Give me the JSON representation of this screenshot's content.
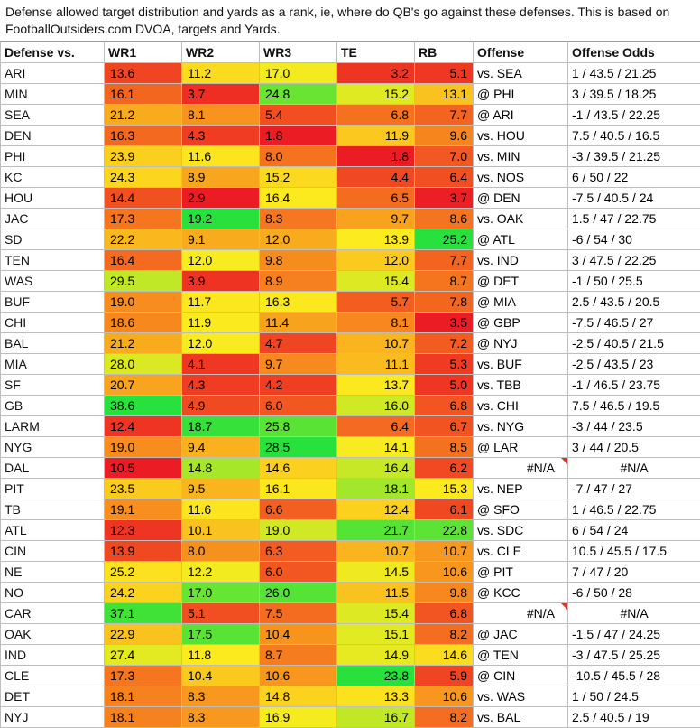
{
  "note": "Defense allowed target distribution and yards as a rank, ie, where do QB's go against these defenses. This is based on FootballOutsiders.com DVOA, targets and Yards.",
  "headers": [
    "Defense vs.",
    "WR1",
    "WR2",
    "WR3",
    "TE",
    "RB",
    "Offense",
    "Offense Odds"
  ],
  "rows": [
    {
      "team": "ARI",
      "wr1": "13.6",
      "wr2": "11.2",
      "wr3": "17.0",
      "te": "3.2",
      "rb": "5.1",
      "offense": "vs. SEA",
      "odds": "1 / 43.5 / 21.25"
    },
    {
      "team": "MIN",
      "wr1": "16.1",
      "wr2": "3.7",
      "wr3": "24.8",
      "te": "15.2",
      "rb": "13.1",
      "offense": "@ PHI",
      "odds": "3 / 39.5 / 18.25"
    },
    {
      "team": "SEA",
      "wr1": "21.2",
      "wr2": "8.1",
      "wr3": "5.4",
      "te": "6.8",
      "rb": "7.7",
      "offense": "@ ARI",
      "odds": "-1 / 43.5 / 22.25"
    },
    {
      "team": "DEN",
      "wr1": "16.3",
      "wr2": "4.3",
      "wr3": "1.8",
      "te": "11.9",
      "rb": "9.6",
      "offense": "vs. HOU",
      "odds": "7.5 / 40.5 / 16.5"
    },
    {
      "team": "PHI",
      "wr1": "23.9",
      "wr2": "11.6",
      "wr3": "8.0",
      "te": "1.8",
      "rb": "7.0",
      "offense": "vs. MIN",
      "odds": "-3 / 39.5 / 21.25"
    },
    {
      "team": "KC",
      "wr1": "24.3",
      "wr2": "8.9",
      "wr3": "15.2",
      "te": "4.4",
      "rb": "6.4",
      "offense": "vs. NOS",
      "odds": "6 / 50 / 22"
    },
    {
      "team": "HOU",
      "wr1": "14.4",
      "wr2": "2.9",
      "wr3": "16.4",
      "te": "6.5",
      "rb": "3.7",
      "offense": "@ DEN",
      "odds": "-7.5 / 40.5 / 24"
    },
    {
      "team": "JAC",
      "wr1": "17.3",
      "wr2": "19.2",
      "wr3": "8.3",
      "te": "9.7",
      "rb": "8.6",
      "offense": "vs. OAK",
      "odds": "1.5 / 47 / 22.75"
    },
    {
      "team": "SD",
      "wr1": "22.2",
      "wr2": "9.1",
      "wr3": "12.0",
      "te": "13.9",
      "rb": "25.2",
      "offense": "@ ATL",
      "odds": "-6 / 54 / 30"
    },
    {
      "team": "TEN",
      "wr1": "16.4",
      "wr2": "12.0",
      "wr3": "9.8",
      "te": "12.0",
      "rb": "7.7",
      "offense": "vs. IND",
      "odds": "3 / 47.5 / 22.25"
    },
    {
      "team": "WAS",
      "wr1": "29.5",
      "wr2": "3.9",
      "wr3": "8.9",
      "te": "15.4",
      "rb": "8.7",
      "offense": "@ DET",
      "odds": "-1 / 50 / 25.5"
    },
    {
      "team": "BUF",
      "wr1": "19.0",
      "wr2": "11.7",
      "wr3": "16.3",
      "te": "5.7",
      "rb": "7.8",
      "offense": "@ MIA",
      "odds": "2.5 / 43.5 / 20.5"
    },
    {
      "team": "CHI",
      "wr1": "18.6",
      "wr2": "11.9",
      "wr3": "11.4",
      "te": "8.1",
      "rb": "3.5",
      "offense": "@ GBP",
      "odds": "-7.5 / 46.5 / 27"
    },
    {
      "team": "BAL",
      "wr1": "21.2",
      "wr2": "12.0",
      "wr3": "4.7",
      "te": "10.7",
      "rb": "7.2",
      "offense": "@ NYJ",
      "odds": "-2.5 / 40.5 / 21.5"
    },
    {
      "team": "MIA",
      "wr1": "28.0",
      "wr2": "4.1",
      "wr3": "9.7",
      "te": "11.1",
      "rb": "5.3",
      "offense": "vs. BUF",
      "odds": "-2.5 / 43.5 / 23"
    },
    {
      "team": "SF",
      "wr1": "20.7",
      "wr2": "4.3",
      "wr3": "4.2",
      "te": "13.7",
      "rb": "5.0",
      "offense": "vs. TBB",
      "odds": "-1 / 46.5 / 23.75"
    },
    {
      "team": "GB",
      "wr1": "38.6",
      "wr2": "4.9",
      "wr3": "6.0",
      "te": "16.0",
      "rb": "6.8",
      "offense": "vs. CHI",
      "odds": "7.5 / 46.5 / 19.5"
    },
    {
      "team": "LARM",
      "wr1": "12.4",
      "wr2": "18.7",
      "wr3": "25.8",
      "te": "6.4",
      "rb": "6.7",
      "offense": "vs. NYG",
      "odds": "-3 / 44 / 23.5"
    },
    {
      "team": "NYG",
      "wr1": "19.0",
      "wr2": "9.4",
      "wr3": "28.5",
      "te": "14.1",
      "rb": "8.5",
      "offense": "@ LAR",
      "odds": "3 / 44 / 20.5"
    },
    {
      "team": "DAL",
      "wr1": "10.5",
      "wr2": "14.8",
      "wr3": "14.6",
      "te": "16.4",
      "rb": "6.2",
      "offense": "#N/A",
      "odds": "#N/A",
      "na": true
    },
    {
      "team": "PIT",
      "wr1": "23.5",
      "wr2": "9.5",
      "wr3": "16.1",
      "te": "18.1",
      "rb": "15.3",
      "offense": "vs. NEP",
      "odds": "-7 / 47 / 27"
    },
    {
      "team": "TB",
      "wr1": "19.1",
      "wr2": "11.6",
      "wr3": "6.6",
      "te": "12.4",
      "rb": "6.1",
      "offense": "@ SFO",
      "odds": "1 / 46.5 / 22.75"
    },
    {
      "team": "ATL",
      "wr1": "12.3",
      "wr2": "10.1",
      "wr3": "19.0",
      "te": "21.7",
      "rb": "22.8",
      "offense": "vs. SDC",
      "odds": "6 / 54 / 24"
    },
    {
      "team": "CIN",
      "wr1": "13.9",
      "wr2": "8.0",
      "wr3": "6.3",
      "te": "10.7",
      "rb": "10.7",
      "offense": "vs. CLE",
      "odds": "10.5 / 45.5 / 17.5"
    },
    {
      "team": "NE",
      "wr1": "25.2",
      "wr2": "12.2",
      "wr3": "6.0",
      "te": "14.5",
      "rb": "10.6",
      "offense": "@ PIT",
      "odds": "7 / 47 / 20"
    },
    {
      "team": "NO",
      "wr1": "24.2",
      "wr2": "17.0",
      "wr3": "26.0",
      "te": "11.5",
      "rb": "9.8",
      "offense": "@ KCC",
      "odds": "-6 / 50 / 28"
    },
    {
      "team": "CAR",
      "wr1": "37.1",
      "wr2": "5.1",
      "wr3": "7.5",
      "te": "15.4",
      "rb": "6.8",
      "offense": "#N/A",
      "odds": "#N/A",
      "na": true
    },
    {
      "team": "OAK",
      "wr1": "22.9",
      "wr2": "17.5",
      "wr3": "10.4",
      "te": "15.1",
      "rb": "8.2",
      "offense": "@ JAC",
      "odds": "-1.5 / 47 / 24.25"
    },
    {
      "team": "IND",
      "wr1": "27.4",
      "wr2": "11.8",
      "wr3": "8.7",
      "te": "14.9",
      "rb": "14.6",
      "offense": "@ TEN",
      "odds": "-3 / 47.5 / 25.25"
    },
    {
      "team": "CLE",
      "wr1": "17.3",
      "wr2": "10.4",
      "wr3": "10.6",
      "te": "23.8",
      "rb": "5.9",
      "offense": "@ CIN",
      "odds": "-10.5 / 45.5 / 28"
    },
    {
      "team": "DET",
      "wr1": "18.1",
      "wr2": "8.3",
      "wr3": "14.8",
      "te": "13.3",
      "rb": "10.6",
      "offense": "vs. WAS",
      "odds": "1 / 50 / 24.5"
    },
    {
      "team": "NYJ",
      "wr1": "18.1",
      "wr2": "8.3",
      "wr3": "16.9",
      "te": "16.7",
      "rb": "8.2",
      "offense": "vs. BAL",
      "odds": "2.5 / 40.5 / 19"
    }
  ]
}
